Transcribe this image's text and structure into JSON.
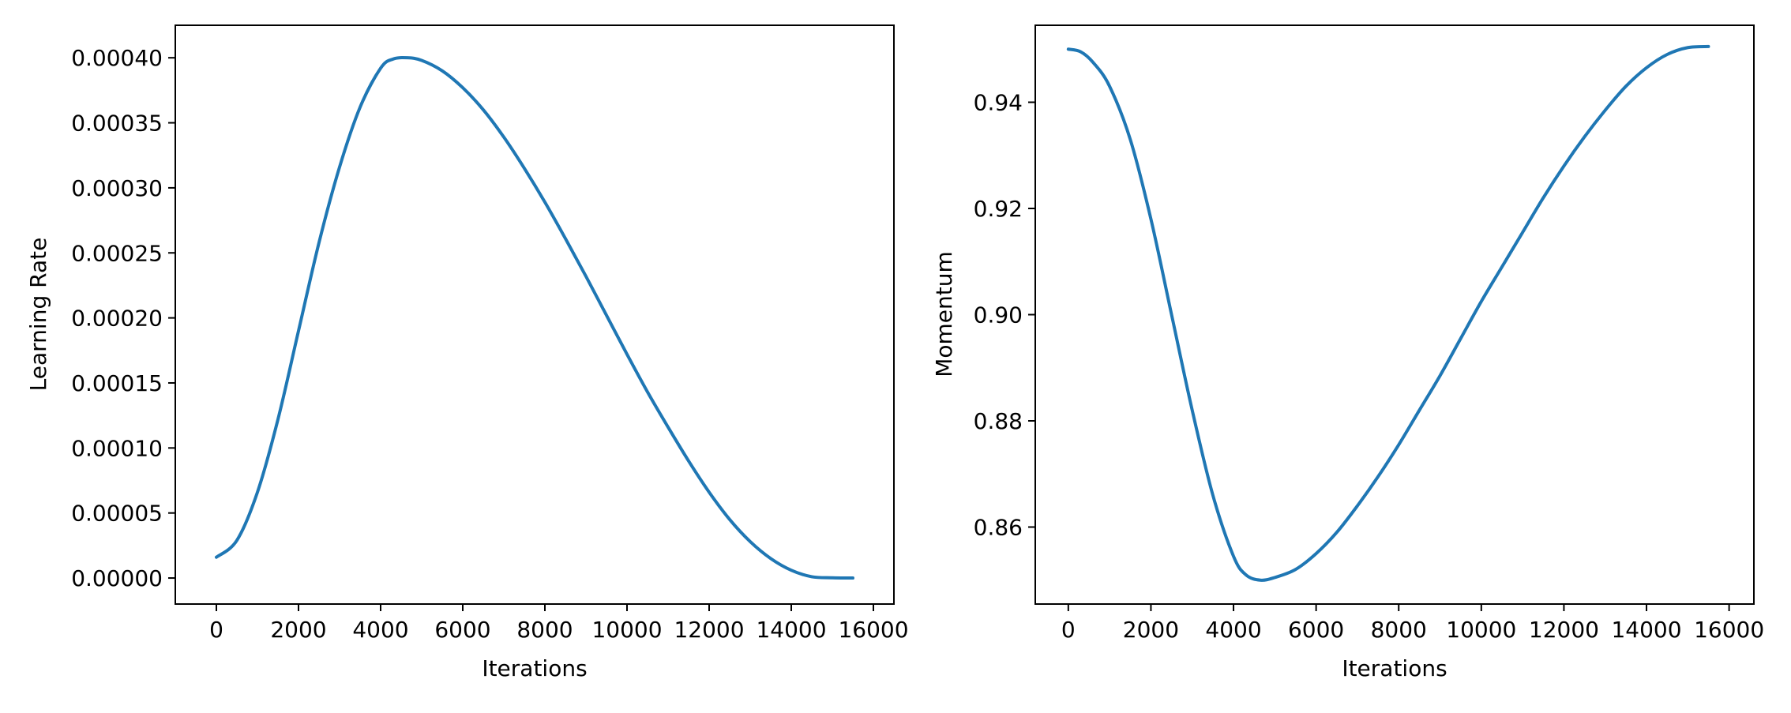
{
  "chart_data": [
    {
      "type": "line",
      "title": "",
      "xlabel": "Iterations",
      "ylabel": "Learning Rate",
      "xlim": [
        -1000,
        16500
      ],
      "ylim": [
        -2e-05,
        0.000425
      ],
      "xticks": [
        0,
        2000,
        4000,
        6000,
        8000,
        10000,
        12000,
        14000,
        16000
      ],
      "xtick_labels": [
        "0",
        "2000",
        "4000",
        "6000",
        "8000",
        "10000",
        "12000",
        "14000",
        "16000"
      ],
      "yticks": [
        0,
        5e-05,
        0.0001,
        0.00015,
        0.0002,
        0.00025,
        0.0003,
        0.00035,
        0.0004
      ],
      "ytick_labels": [
        "0.00000",
        "0.00005",
        "0.00010",
        "0.00015",
        "0.00020",
        "0.00025",
        "0.00030",
        "0.00035",
        "0.00040"
      ],
      "grid": false,
      "series": [
        {
          "color": "#1f77b4",
          "x": [
            0,
            500,
            1000,
            1500,
            2000,
            2500,
            3000,
            3500,
            4000,
            4300,
            4650,
            5000,
            5500,
            6000,
            6500,
            7000,
            7500,
            8000,
            8500,
            9000,
            9500,
            10000,
            10500,
            11000,
            11500,
            12000,
            12500,
            13000,
            13500,
            14000,
            14500,
            15000,
            15500
          ],
          "y": [
            1.6e-05,
            2.9e-05,
            6.6e-05,
            0.000122,
            0.00019,
            0.000258,
            0.000316,
            0.000362,
            0.000392,
            0.000399,
            0.0004,
            0.000398,
            0.00039,
            0.000377,
            0.00036,
            0.000339,
            0.000315,
            0.000289,
            0.000261,
            0.000232,
            0.000202,
            0.000172,
            0.000143,
            0.000116,
            9e-05,
            6.6e-05,
            4.5e-05,
            2.8e-05,
            1.5e-05,
            6e-06,
            1e-06,
            2e-07,
            0.0
          ]
        }
      ]
    },
    {
      "type": "line",
      "title": "",
      "xlabel": "Iterations",
      "ylabel": "Momentum",
      "xlim": [
        -800,
        16600
      ],
      "ylim": [
        0.8455,
        0.9545
      ],
      "xticks": [
        0,
        2000,
        4000,
        6000,
        8000,
        10000,
        12000,
        14000,
        16000
      ],
      "xtick_labels": [
        "0",
        "2000",
        "4000",
        "6000",
        "8000",
        "10000",
        "12000",
        "14000",
        "16000"
      ],
      "yticks": [
        0.86,
        0.88,
        0.9,
        0.92,
        0.94
      ],
      "ytick_labels": [
        "0.86",
        "0.88",
        "0.90",
        "0.92",
        "0.94"
      ],
      "grid": false,
      "series": [
        {
          "color": "#1f77b4",
          "x": [
            0,
            300,
            600,
            1000,
            1500,
            2000,
            2500,
            3000,
            3500,
            4000,
            4300,
            4650,
            5000,
            5500,
            6000,
            6500,
            7000,
            7500,
            8000,
            8500,
            9000,
            9500,
            10000,
            10500,
            11000,
            11500,
            12000,
            12500,
            13000,
            13500,
            14000,
            14500,
            15000,
            15500
          ],
          "y": [
            0.95,
            0.9495,
            0.9475,
            0.943,
            0.933,
            0.918,
            0.9,
            0.882,
            0.866,
            0.8545,
            0.851,
            0.85,
            0.8505,
            0.852,
            0.855,
            0.859,
            0.864,
            0.8695,
            0.8755,
            0.882,
            0.8885,
            0.8955,
            0.9025,
            0.909,
            0.9155,
            0.922,
            0.928,
            0.9335,
            0.9385,
            0.943,
            0.9465,
            0.949,
            0.9503,
            0.9505
          ]
        }
      ]
    }
  ]
}
